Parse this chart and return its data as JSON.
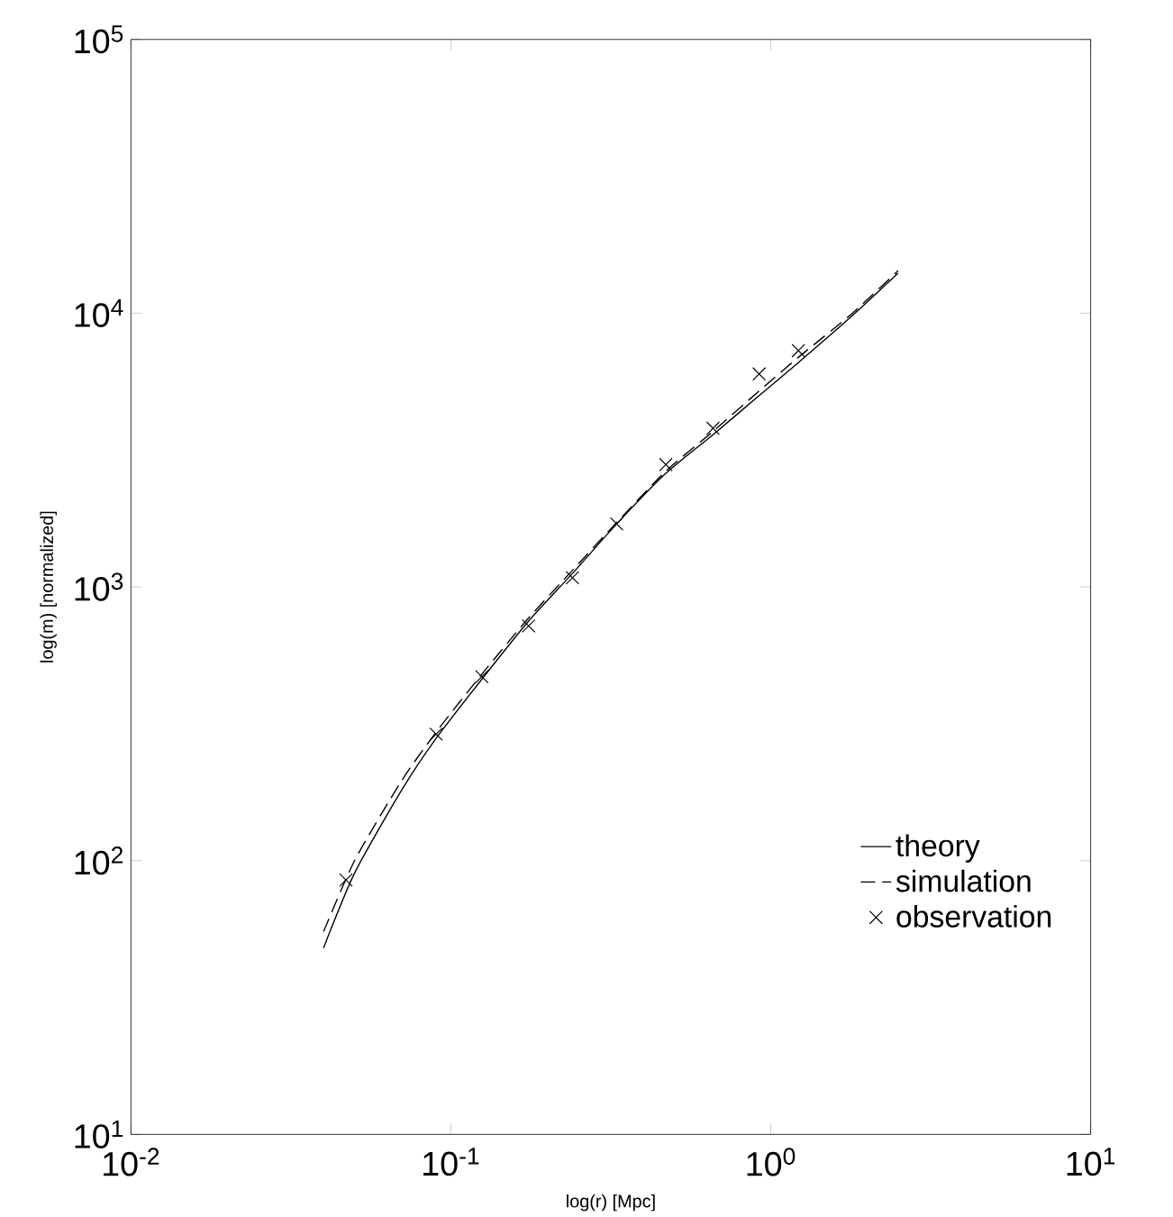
{
  "chart_data": {
    "type": "line",
    "xlabel": "log(r) [Mpc]",
    "ylabel": "log(m) [normalized]",
    "log": "xy",
    "grid": false,
    "legend": "bottom right",
    "xlim": [
      0.01,
      10
    ],
    "ylim": [
      10,
      100000
    ],
    "xticks": [
      {
        "value": 0.01,
        "label": "10$^{-2}$"
      },
      {
        "value": 0.1,
        "label": "10$^{-1}$"
      },
      {
        "value": 1,
        "label": "10$^{0}$"
      },
      {
        "value": 10,
        "label": "10$^{1}$"
      }
    ],
    "yticks": [
      {
        "value": 10,
        "label": "10$^{1}$"
      },
      {
        "value": 100,
        "label": "10$^{2}$"
      },
      {
        "value": 1000,
        "label": "10$^{3}$"
      },
      {
        "value": 10000,
        "label": "10$^{4}$"
      },
      {
        "value": 100000,
        "label": "10$^{5}$"
      }
    ],
    "series": [
      {
        "name": "theory",
        "color": "#000000",
        "line_style": "solid",
        "marker": "none",
        "x": [
          0.04,
          0.05,
          0.07,
          0.09,
          0.125,
          0.175,
          0.24,
          0.33,
          0.47,
          0.66,
          0.92,
          1.22,
          1.8,
          2.5
        ],
        "values": [
          48,
          90,
          180,
          280,
          460,
          750,
          1120,
          1700,
          2600,
          3600,
          5000,
          6600,
          9800,
          14000
        ]
      },
      {
        "name": "simulation",
        "color": "#000000",
        "line_style": "dashed",
        "marker": "none",
        "x": [
          0.04,
          0.05,
          0.07,
          0.09,
          0.125,
          0.175,
          0.24,
          0.33,
          0.47,
          0.66,
          0.92,
          1.22,
          1.8,
          2.5
        ],
        "values": [
          55,
          100,
          195,
          295,
          480,
          770,
          1150,
          1720,
          2650,
          3700,
          5200,
          6900,
          10000,
          14300
        ]
      },
      {
        "name": "observation",
        "type": "scatter",
        "color": "#000000",
        "marker": "cross",
        "x": [
          0.047,
          0.09,
          0.125,
          0.175,
          0.24,
          0.33,
          0.47,
          0.66,
          0.92,
          1.22
        ],
        "values": [
          85,
          290,
          470,
          720,
          1080,
          1700,
          2800,
          3800,
          6000,
          7300
        ]
      }
    ]
  }
}
